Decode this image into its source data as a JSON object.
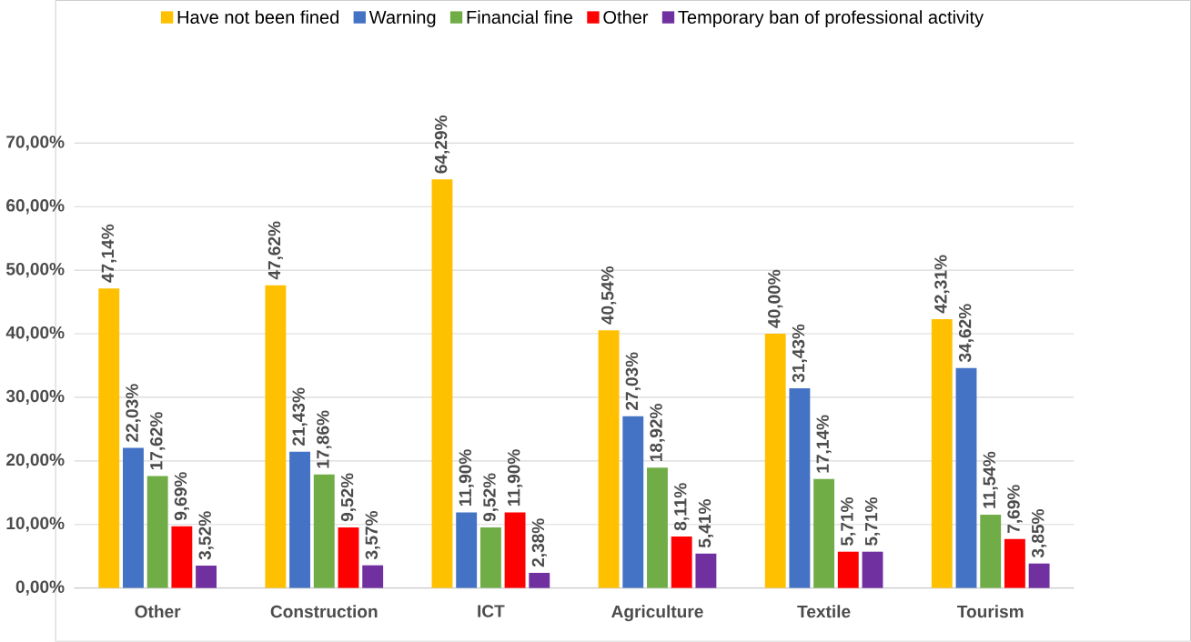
{
  "chart_data": {
    "type": "bar",
    "categories": [
      "Other",
      "Construction",
      "ICT",
      "Agriculture",
      "Textile",
      "Tourism"
    ],
    "series": [
      {
        "name": "Have not been fined",
        "color": "#ffc000",
        "values": [
          47.14,
          47.62,
          64.29,
          40.54,
          40.0,
          42.31
        ],
        "value_labels": [
          "47,14%",
          "47,62%",
          "64,29%",
          "40,54%",
          "40,00%",
          "42,31%"
        ]
      },
      {
        "name": "Warning",
        "color": "#4472c4",
        "values": [
          22.03,
          21.43,
          11.9,
          27.03,
          31.43,
          34.62
        ],
        "value_labels": [
          "22,03%",
          "21,43%",
          "11,90%",
          "27,03%",
          "31,43%",
          "34,62%"
        ]
      },
      {
        "name": "Financial fine",
        "color": "#70ad47",
        "values": [
          17.62,
          17.86,
          9.52,
          18.92,
          17.14,
          11.54
        ],
        "value_labels": [
          "17,62%",
          "17,86%",
          "9,52%",
          "18,92%",
          "17,14%",
          "11,54%"
        ]
      },
      {
        "name": "Other",
        "color": "#ff0000",
        "values": [
          9.69,
          9.52,
          11.9,
          8.11,
          5.71,
          7.69
        ],
        "value_labels": [
          "9,69%",
          "9,52%",
          "11,90%",
          "8,11%",
          "5,71%",
          "7,69%"
        ]
      },
      {
        "name": "Temporary ban of professional activity",
        "color": "#7030a0",
        "values": [
          3.52,
          3.57,
          2.38,
          5.41,
          5.71,
          3.85
        ],
        "value_labels": [
          "3,52%",
          "3,57%",
          "2,38%",
          "5,41%",
          "5,71%",
          "3,85%"
        ]
      }
    ],
    "ylim": [
      0,
      70
    ],
    "yticks": [
      {
        "value": 0,
        "label": "0,00%"
      },
      {
        "value": 10,
        "label": "10,00%"
      },
      {
        "value": 20,
        "label": "20,00%"
      },
      {
        "value": 30,
        "label": "30,00%"
      },
      {
        "value": 40,
        "label": "40,00%"
      },
      {
        "value": 50,
        "label": "50,00%"
      },
      {
        "value": 60,
        "label": "60,00%"
      },
      {
        "value": 70,
        "label": "70,00%"
      }
    ],
    "grid": "y",
    "legend": "top"
  }
}
